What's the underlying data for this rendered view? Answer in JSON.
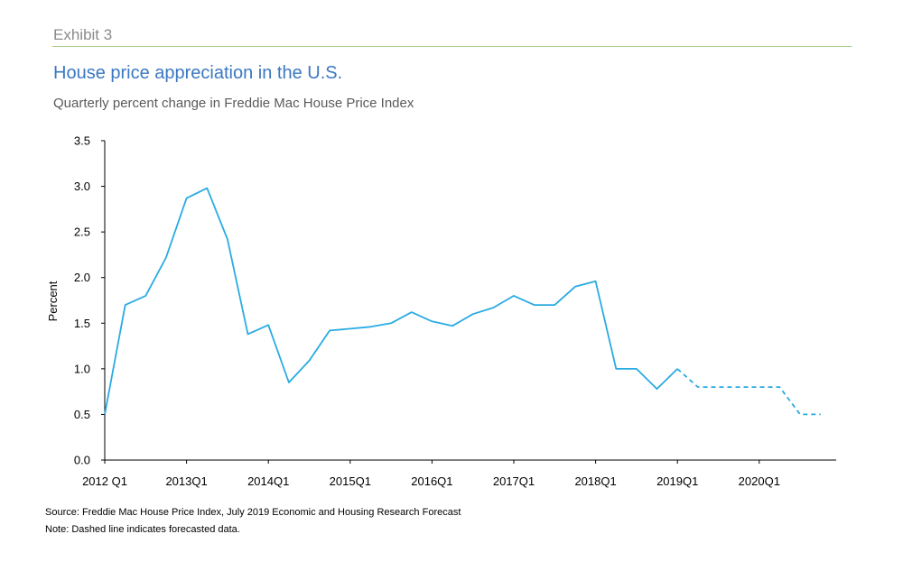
{
  "header": {
    "exhibit": "Exhibit 3",
    "title": "House price appreciation in the U.S.",
    "subtitle": "Quarterly percent change in Freddie Mac House Price Index"
  },
  "footer": {
    "source": "Source: Freddie Mac House Price Index, July 2019 Economic and Housing Research Forecast",
    "note": "Note: Dashed line indicates forecasted data."
  },
  "colors": {
    "series": "#29abe2",
    "title": "#3b78c2",
    "rule": "#a8d08d"
  },
  "chart_data": {
    "type": "line",
    "title": "House price appreciation in the U.S.",
    "subtitle": "Quarterly percent change in Freddie Mac House Price Index",
    "xlabel": "",
    "ylabel": "Percent",
    "ylim": [
      0,
      3.5
    ],
    "yticks": [
      "0.0",
      "0.5",
      "1.0",
      "1.5",
      "2.0",
      "2.5",
      "3.0",
      "3.5"
    ],
    "xtick_labels": [
      "2012 Q1",
      "2013Q1",
      "2014Q1",
      "2015Q1",
      "2016Q1",
      "2017Q1",
      "2018Q1",
      "2019Q1",
      "2020Q1"
    ],
    "grid": false,
    "legend": "none",
    "x": [
      "2012Q1",
      "2012Q2",
      "2012Q3",
      "2012Q4",
      "2013Q1",
      "2013Q2",
      "2013Q3",
      "2013Q4",
      "2014Q1",
      "2014Q2",
      "2014Q3",
      "2014Q4",
      "2015Q1",
      "2015Q2",
      "2015Q3",
      "2015Q4",
      "2016Q1",
      "2016Q2",
      "2016Q3",
      "2016Q4",
      "2017Q1",
      "2017Q2",
      "2017Q3",
      "2017Q4",
      "2018Q1",
      "2018Q2",
      "2018Q3",
      "2018Q4",
      "2019Q1",
      "2019Q2",
      "2019Q3",
      "2019Q4",
      "2020Q1",
      "2020Q2",
      "2020Q3",
      "2020Q4"
    ],
    "series": [
      {
        "values": [
          0.5,
          1.7,
          1.8,
          2.22,
          2.87,
          2.98,
          2.42,
          1.38,
          1.48,
          0.85,
          1.09,
          1.42,
          1.44,
          1.46,
          1.5,
          1.62,
          1.52,
          1.47,
          1.6,
          1.67,
          1.8,
          1.7,
          1.7,
          1.9,
          1.96,
          1.0,
          1.0,
          0.78,
          1.0,
          null,
          null,
          null,
          null,
          null,
          null,
          null
        ],
        "style": "solid"
      },
      {
        "values": [
          null,
          null,
          null,
          null,
          null,
          null,
          null,
          null,
          null,
          null,
          null,
          null,
          null,
          null,
          null,
          null,
          null,
          null,
          null,
          null,
          null,
          null,
          null,
          null,
          null,
          null,
          null,
          null,
          1.0,
          0.8,
          0.8,
          0.8,
          0.8,
          0.8,
          0.5,
          0.5
        ],
        "style": "dashed"
      }
    ]
  }
}
